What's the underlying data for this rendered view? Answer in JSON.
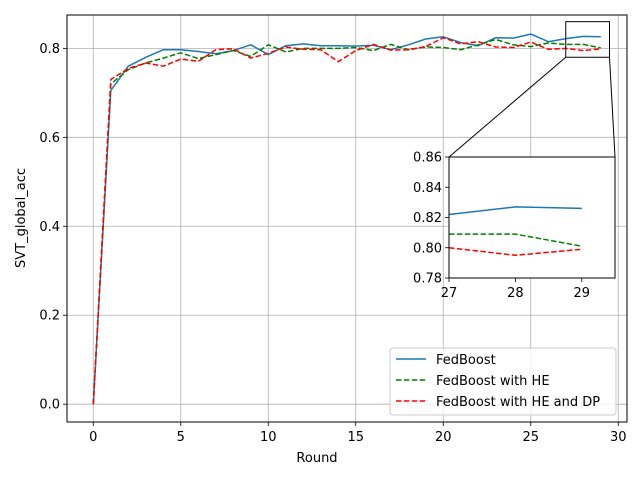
{
  "chart_data": [
    {
      "type": "line",
      "title": "",
      "xlabel": "Round",
      "ylabel": "SVT_global_acc",
      "xlim": [
        -1.5,
        30.5
      ],
      "ylim": [
        -0.04,
        0.875
      ],
      "xticks": [
        0,
        5,
        10,
        15,
        20,
        25,
        30
      ],
      "yticks": [
        0.0,
        0.2,
        0.4,
        0.6,
        0.8
      ],
      "xtick_labels": [
        "0",
        "5",
        "10",
        "15",
        "20",
        "25",
        "30"
      ],
      "ytick_labels": [
        "0.0",
        "0.2",
        "0.4",
        "0.6",
        "0.8"
      ],
      "grid": true,
      "legend_position": "lower-right",
      "x": [
        0,
        1,
        2,
        3,
        4,
        5,
        6,
        7,
        8,
        9,
        10,
        11,
        12,
        13,
        14,
        15,
        16,
        17,
        18,
        19,
        20,
        21,
        22,
        23,
        24,
        25,
        26,
        27,
        28,
        29
      ],
      "series": [
        {
          "name": "FedBoost",
          "color": "#1f77b4",
          "style": "solid",
          "values": [
            0.0,
            0.705,
            0.76,
            0.78,
            0.797,
            0.797,
            0.793,
            0.788,
            0.795,
            0.808,
            0.786,
            0.806,
            0.81,
            0.806,
            0.806,
            0.805,
            0.807,
            0.797,
            0.808,
            0.821,
            0.826,
            0.813,
            0.806,
            0.824,
            0.823,
            0.832,
            0.815,
            0.822,
            0.827,
            0.826
          ]
        },
        {
          "name": "FedBoost with HE",
          "color": "#008000",
          "style": "dashed",
          "values": [
            0.0,
            0.72,
            0.752,
            0.767,
            0.778,
            0.79,
            0.777,
            0.786,
            0.795,
            0.782,
            0.808,
            0.792,
            0.8,
            0.8,
            0.8,
            0.802,
            0.795,
            0.809,
            0.797,
            0.803,
            0.802,
            0.797,
            0.808,
            0.82,
            0.808,
            0.804,
            0.812,
            0.809,
            0.809,
            0.801
          ]
        },
        {
          "name": "FedBoost with HE and DP",
          "color": "#ff0000",
          "style": "dashed",
          "values": [
            0.0,
            0.73,
            0.755,
            0.767,
            0.76,
            0.776,
            0.771,
            0.797,
            0.799,
            0.778,
            0.789,
            0.803,
            0.798,
            0.797,
            0.77,
            0.795,
            0.809,
            0.796,
            0.797,
            0.804,
            0.824,
            0.81,
            0.815,
            0.803,
            0.802,
            0.814,
            0.798,
            0.8,
            0.795,
            0.799
          ]
        }
      ]
    },
    {
      "type": "line",
      "title": "",
      "xlabel": "",
      "ylabel": "",
      "xlim": [
        27,
        29.5
      ],
      "ylim": [
        0.78,
        0.86
      ],
      "xticks": [
        27,
        28,
        29
      ],
      "yticks": [
        0.78,
        0.8,
        0.82,
        0.84,
        0.86
      ],
      "xtick_labels": [
        "27",
        "28",
        "29"
      ],
      "ytick_labels": [
        "0.78",
        "0.80",
        "0.82",
        "0.84",
        "0.86"
      ],
      "grid": false,
      "x": [
        27,
        28,
        29
      ],
      "series": [
        {
          "color": "#1f77b4",
          "style": "solid",
          "values": [
            0.822,
            0.827,
            0.826
          ]
        },
        {
          "color": "#008000",
          "style": "dashed",
          "values": [
            0.809,
            0.809,
            0.801
          ]
        },
        {
          "color": "#ff0000",
          "style": "dashed",
          "values": [
            0.8,
            0.795,
            0.799
          ]
        }
      ]
    }
  ]
}
